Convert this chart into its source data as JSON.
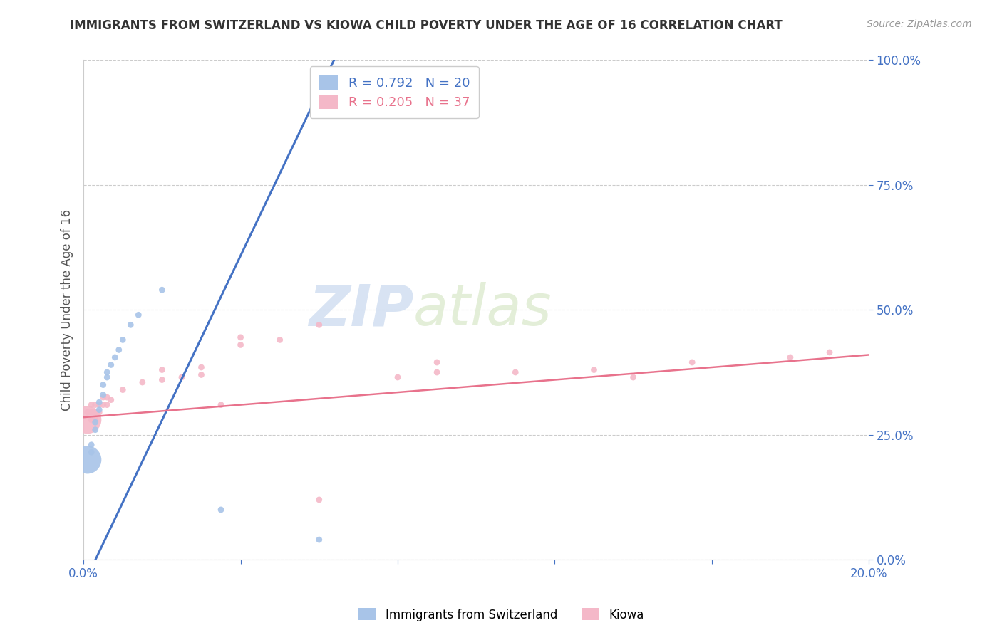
{
  "title": "IMMIGRANTS FROM SWITZERLAND VS KIOWA CHILD POVERTY UNDER THE AGE OF 16 CORRELATION CHART",
  "source": "Source: ZipAtlas.com",
  "ylabel": "Child Poverty Under the Age of 16",
  "xlim": [
    0.0,
    0.2
  ],
  "ylim": [
    0.0,
    1.0
  ],
  "ytick_vals": [
    0.0,
    0.25,
    0.5,
    0.75,
    1.0
  ],
  "xtick_vals": [
    0.0,
    0.04,
    0.08,
    0.12,
    0.16,
    0.2
  ],
  "xtick_labels": [
    "0.0%",
    "",
    "",
    "",
    "",
    "20.0%"
  ],
  "legend_label_blue": "Immigrants from Switzerland",
  "legend_label_pink": "Kiowa",
  "blue_color": "#a8c4e8",
  "pink_color": "#f4b8c8",
  "line_blue": "#4472c4",
  "line_pink": "#e8728c",
  "watermark_zip": "ZIP",
  "watermark_atlas": "atlas",
  "blue_scatter": [
    [
      0.001,
      0.2
    ],
    [
      0.002,
      0.215
    ],
    [
      0.002,
      0.23
    ],
    [
      0.003,
      0.26
    ],
    [
      0.003,
      0.275
    ],
    [
      0.004,
      0.3
    ],
    [
      0.004,
      0.315
    ],
    [
      0.005,
      0.33
    ],
    [
      0.005,
      0.35
    ],
    [
      0.006,
      0.365
    ],
    [
      0.006,
      0.375
    ],
    [
      0.007,
      0.39
    ],
    [
      0.008,
      0.405
    ],
    [
      0.009,
      0.42
    ],
    [
      0.01,
      0.44
    ],
    [
      0.012,
      0.47
    ],
    [
      0.014,
      0.49
    ],
    [
      0.02,
      0.54
    ],
    [
      0.035,
      0.1
    ],
    [
      0.06,
      0.04
    ]
  ],
  "blue_sizes": [
    800,
    40,
    40,
    40,
    40,
    40,
    40,
    40,
    40,
    40,
    40,
    40,
    40,
    40,
    40,
    40,
    40,
    40,
    40,
    40
  ],
  "pink_scatter": [
    [
      0.001,
      0.28
    ],
    [
      0.001,
      0.295
    ],
    [
      0.002,
      0.28
    ],
    [
      0.002,
      0.295
    ],
    [
      0.002,
      0.31
    ],
    [
      0.003,
      0.28
    ],
    [
      0.003,
      0.295
    ],
    [
      0.003,
      0.31
    ],
    [
      0.004,
      0.295
    ],
    [
      0.004,
      0.31
    ],
    [
      0.005,
      0.31
    ],
    [
      0.005,
      0.325
    ],
    [
      0.006,
      0.31
    ],
    [
      0.006,
      0.325
    ],
    [
      0.007,
      0.32
    ],
    [
      0.01,
      0.34
    ],
    [
      0.015,
      0.355
    ],
    [
      0.02,
      0.36
    ],
    [
      0.02,
      0.38
    ],
    [
      0.025,
      0.365
    ],
    [
      0.03,
      0.37
    ],
    [
      0.03,
      0.385
    ],
    [
      0.035,
      0.31
    ],
    [
      0.04,
      0.43
    ],
    [
      0.04,
      0.445
    ],
    [
      0.05,
      0.44
    ],
    [
      0.06,
      0.47
    ],
    [
      0.06,
      0.12
    ],
    [
      0.08,
      0.365
    ],
    [
      0.09,
      0.375
    ],
    [
      0.09,
      0.395
    ],
    [
      0.11,
      0.375
    ],
    [
      0.13,
      0.38
    ],
    [
      0.14,
      0.365
    ],
    [
      0.155,
      0.395
    ],
    [
      0.18,
      0.405
    ],
    [
      0.19,
      0.415
    ]
  ],
  "pink_sizes": [
    800,
    40,
    40,
    40,
    40,
    40,
    40,
    40,
    40,
    40,
    40,
    40,
    40,
    40,
    40,
    40,
    40,
    40,
    40,
    40,
    40,
    40,
    40,
    40,
    40,
    40,
    40,
    40,
    40,
    40,
    40,
    40,
    40,
    40,
    40,
    40,
    40
  ],
  "blue_line_x": [
    0.0,
    0.065
  ],
  "blue_line_y": [
    -0.05,
    1.02
  ],
  "pink_line_x": [
    0.0,
    0.2
  ],
  "pink_line_y": [
    0.285,
    0.41
  ]
}
